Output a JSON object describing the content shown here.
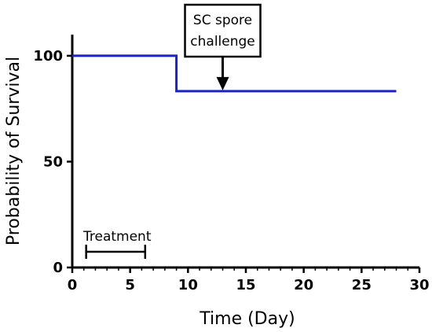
{
  "chart_data": {
    "type": "line",
    "xlabel": "Time (Day)",
    "ylabel": "Probability of Survival",
    "xlim": [
      0,
      30
    ],
    "ylim": [
      0,
      110
    ],
    "x_ticks": [
      0,
      5,
      10,
      15,
      20,
      25,
      30
    ],
    "y_ticks": [
      0,
      50,
      100
    ],
    "x_tick_labels": [
      "0",
      "5",
      "10",
      "15",
      "20",
      "25",
      "30"
    ],
    "y_tick_labels": [
      "0",
      "50",
      "100"
    ],
    "grid": false,
    "series": [
      {
        "color": "#1a23c9",
        "step": true,
        "x": [
          0,
          9,
          9,
          28
        ],
        "y": [
          100,
          100,
          83.3,
          83.3
        ]
      }
    ],
    "annotations": {
      "challenge": {
        "line1": "SC spore",
        "line2": "challenge",
        "x": 13
      },
      "treatment": {
        "label": "Treatment",
        "start": 1.2,
        "end": 6.3
      }
    }
  }
}
